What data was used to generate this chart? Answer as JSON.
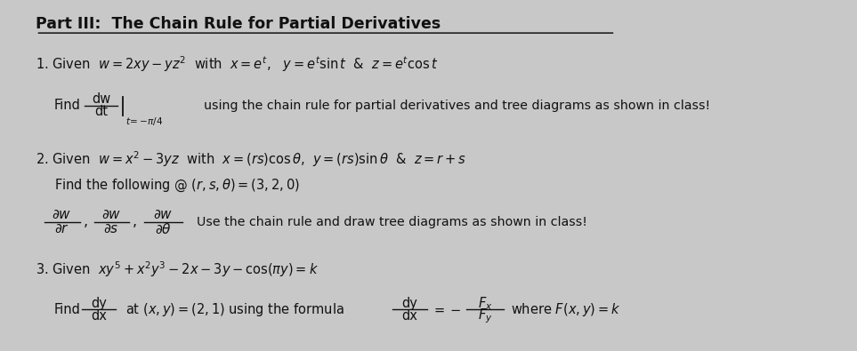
{
  "background_color": "#c8c8c8",
  "text_color": "#111111",
  "title": "Part III:  The Chain Rule for Partial Derivatives",
  "line1": "1. Given  $w = 2xy - yz^2$  with  $x = e^t$,   $y = e^t \\sin t$  &  $z = e^t \\cos t$",
  "line2a": "2. Given  $w = x^2 - 3yz$  with  $x = (rs)\\cos\\theta$,  $y = (rs)\\sin\\theta$  &  $z = r + s$",
  "line2b": "Find the following @ $(r, s, \\theta) = (3, 2, 0)$",
  "line2c": "Use the chain rule and draw tree diagrams as shown in class!",
  "line3": "3. Given  $xy^5 + x^2y^3 - 2x - 3y - \\cos(\\pi y) = k$",
  "find1_text": "using the chain rule for partial derivatives and tree diagrams as shown in class!",
  "find2_text": "at $(x, y) = (2,1)$ using the formula",
  "find2_where": "where $F(x, y) = k$",
  "title_fontsize": 12.5,
  "body_fontsize": 10.5,
  "small_fontsize": 9.5
}
